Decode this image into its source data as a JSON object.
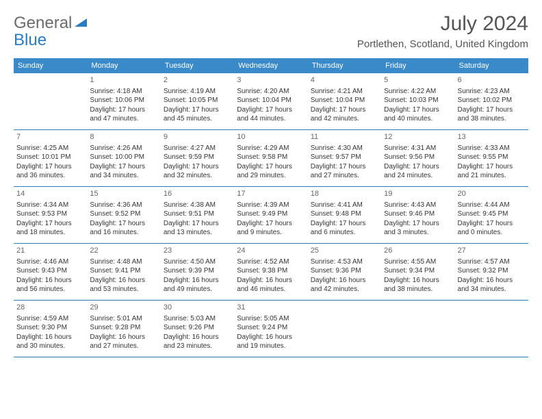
{
  "logo": {
    "text1": "General",
    "text2": "Blue"
  },
  "title": "July 2024",
  "location": "Portlethen, Scotland, United Kingdom",
  "header_bg": "#3a89c9",
  "divider_color": "#2b7bbf",
  "weekdays": [
    "Sunday",
    "Monday",
    "Tuesday",
    "Wednesday",
    "Thursday",
    "Friday",
    "Saturday"
  ],
  "weeks": [
    [
      null,
      {
        "n": "1",
        "sr": "Sunrise: 4:18 AM",
        "ss": "Sunset: 10:06 PM",
        "dl": "Daylight: 17 hours and 47 minutes."
      },
      {
        "n": "2",
        "sr": "Sunrise: 4:19 AM",
        "ss": "Sunset: 10:05 PM",
        "dl": "Daylight: 17 hours and 45 minutes."
      },
      {
        "n": "3",
        "sr": "Sunrise: 4:20 AM",
        "ss": "Sunset: 10:04 PM",
        "dl": "Daylight: 17 hours and 44 minutes."
      },
      {
        "n": "4",
        "sr": "Sunrise: 4:21 AM",
        "ss": "Sunset: 10:04 PM",
        "dl": "Daylight: 17 hours and 42 minutes."
      },
      {
        "n": "5",
        "sr": "Sunrise: 4:22 AM",
        "ss": "Sunset: 10:03 PM",
        "dl": "Daylight: 17 hours and 40 minutes."
      },
      {
        "n": "6",
        "sr": "Sunrise: 4:23 AM",
        "ss": "Sunset: 10:02 PM",
        "dl": "Daylight: 17 hours and 38 minutes."
      }
    ],
    [
      {
        "n": "7",
        "sr": "Sunrise: 4:25 AM",
        "ss": "Sunset: 10:01 PM",
        "dl": "Daylight: 17 hours and 36 minutes."
      },
      {
        "n": "8",
        "sr": "Sunrise: 4:26 AM",
        "ss": "Sunset: 10:00 PM",
        "dl": "Daylight: 17 hours and 34 minutes."
      },
      {
        "n": "9",
        "sr": "Sunrise: 4:27 AM",
        "ss": "Sunset: 9:59 PM",
        "dl": "Daylight: 17 hours and 32 minutes."
      },
      {
        "n": "10",
        "sr": "Sunrise: 4:29 AM",
        "ss": "Sunset: 9:58 PM",
        "dl": "Daylight: 17 hours and 29 minutes."
      },
      {
        "n": "11",
        "sr": "Sunrise: 4:30 AM",
        "ss": "Sunset: 9:57 PM",
        "dl": "Daylight: 17 hours and 27 minutes."
      },
      {
        "n": "12",
        "sr": "Sunrise: 4:31 AM",
        "ss": "Sunset: 9:56 PM",
        "dl": "Daylight: 17 hours and 24 minutes."
      },
      {
        "n": "13",
        "sr": "Sunrise: 4:33 AM",
        "ss": "Sunset: 9:55 PM",
        "dl": "Daylight: 17 hours and 21 minutes."
      }
    ],
    [
      {
        "n": "14",
        "sr": "Sunrise: 4:34 AM",
        "ss": "Sunset: 9:53 PM",
        "dl": "Daylight: 17 hours and 18 minutes."
      },
      {
        "n": "15",
        "sr": "Sunrise: 4:36 AM",
        "ss": "Sunset: 9:52 PM",
        "dl": "Daylight: 17 hours and 16 minutes."
      },
      {
        "n": "16",
        "sr": "Sunrise: 4:38 AM",
        "ss": "Sunset: 9:51 PM",
        "dl": "Daylight: 17 hours and 13 minutes."
      },
      {
        "n": "17",
        "sr": "Sunrise: 4:39 AM",
        "ss": "Sunset: 9:49 PM",
        "dl": "Daylight: 17 hours and 9 minutes."
      },
      {
        "n": "18",
        "sr": "Sunrise: 4:41 AM",
        "ss": "Sunset: 9:48 PM",
        "dl": "Daylight: 17 hours and 6 minutes."
      },
      {
        "n": "19",
        "sr": "Sunrise: 4:43 AM",
        "ss": "Sunset: 9:46 PM",
        "dl": "Daylight: 17 hours and 3 minutes."
      },
      {
        "n": "20",
        "sr": "Sunrise: 4:44 AM",
        "ss": "Sunset: 9:45 PM",
        "dl": "Daylight: 17 hours and 0 minutes."
      }
    ],
    [
      {
        "n": "21",
        "sr": "Sunrise: 4:46 AM",
        "ss": "Sunset: 9:43 PM",
        "dl": "Daylight: 16 hours and 56 minutes."
      },
      {
        "n": "22",
        "sr": "Sunrise: 4:48 AM",
        "ss": "Sunset: 9:41 PM",
        "dl": "Daylight: 16 hours and 53 minutes."
      },
      {
        "n": "23",
        "sr": "Sunrise: 4:50 AM",
        "ss": "Sunset: 9:39 PM",
        "dl": "Daylight: 16 hours and 49 minutes."
      },
      {
        "n": "24",
        "sr": "Sunrise: 4:52 AM",
        "ss": "Sunset: 9:38 PM",
        "dl": "Daylight: 16 hours and 46 minutes."
      },
      {
        "n": "25",
        "sr": "Sunrise: 4:53 AM",
        "ss": "Sunset: 9:36 PM",
        "dl": "Daylight: 16 hours and 42 minutes."
      },
      {
        "n": "26",
        "sr": "Sunrise: 4:55 AM",
        "ss": "Sunset: 9:34 PM",
        "dl": "Daylight: 16 hours and 38 minutes."
      },
      {
        "n": "27",
        "sr": "Sunrise: 4:57 AM",
        "ss": "Sunset: 9:32 PM",
        "dl": "Daylight: 16 hours and 34 minutes."
      }
    ],
    [
      {
        "n": "28",
        "sr": "Sunrise: 4:59 AM",
        "ss": "Sunset: 9:30 PM",
        "dl": "Daylight: 16 hours and 30 minutes."
      },
      {
        "n": "29",
        "sr": "Sunrise: 5:01 AM",
        "ss": "Sunset: 9:28 PM",
        "dl": "Daylight: 16 hours and 27 minutes."
      },
      {
        "n": "30",
        "sr": "Sunrise: 5:03 AM",
        "ss": "Sunset: 9:26 PM",
        "dl": "Daylight: 16 hours and 23 minutes."
      },
      {
        "n": "31",
        "sr": "Sunrise: 5:05 AM",
        "ss": "Sunset: 9:24 PM",
        "dl": "Daylight: 16 hours and 19 minutes."
      },
      null,
      null,
      null
    ]
  ]
}
